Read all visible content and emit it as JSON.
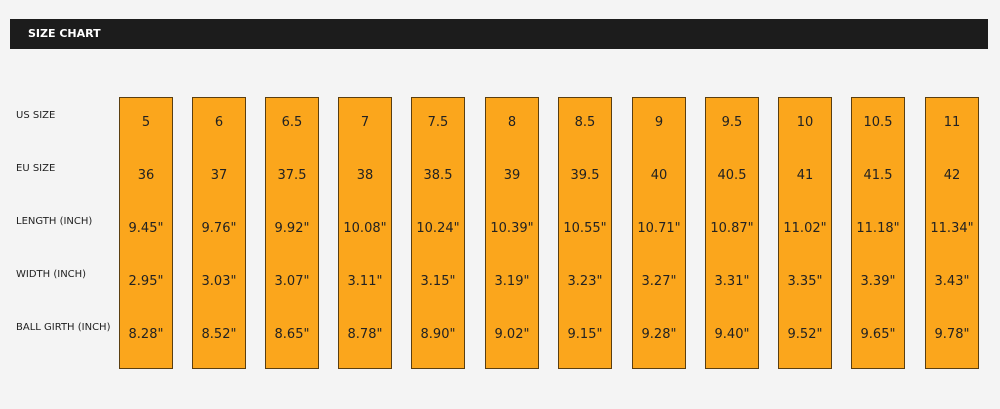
{
  "header": {
    "title": "SIZE CHART"
  },
  "table": {
    "row_labels": [
      "US SIZE",
      "EU SIZE",
      "LENGTH (INCH)",
      "WIDTH (INCH)",
      "BALL GIRTH (INCH)"
    ],
    "columns": [
      [
        "5",
        "36",
        "9.45\"",
        "2.95\"",
        "8.28\""
      ],
      [
        "6",
        "37",
        "9.76\"",
        "3.03\"",
        "8.52\""
      ],
      [
        "6.5",
        "37.5",
        "9.92\"",
        "3.07\"",
        "8.65\""
      ],
      [
        "7",
        "38",
        "10.08\"",
        "3.11\"",
        "8.78\""
      ],
      [
        "7.5",
        "38.5",
        "10.24\"",
        "3.15\"",
        "8.90\""
      ],
      [
        "8",
        "39",
        "10.39\"",
        "3.19\"",
        "9.02\""
      ],
      [
        "8.5",
        "39.5",
        "10.55\"",
        "3.23\"",
        "9.15\""
      ],
      [
        "9",
        "40",
        "10.71\"",
        "3.27\"",
        "9.28\""
      ],
      [
        "9.5",
        "40.5",
        "10.87\"",
        "3.31\"",
        "9.40\""
      ],
      [
        "10",
        "41",
        "11.02\"",
        "3.35\"",
        "9.52\""
      ],
      [
        "10.5",
        "41.5",
        "11.18\"",
        "3.39\"",
        "9.65\""
      ],
      [
        "11",
        "42",
        "11.34\"",
        "3.43\"",
        "9.78\""
      ]
    ]
  }
}
